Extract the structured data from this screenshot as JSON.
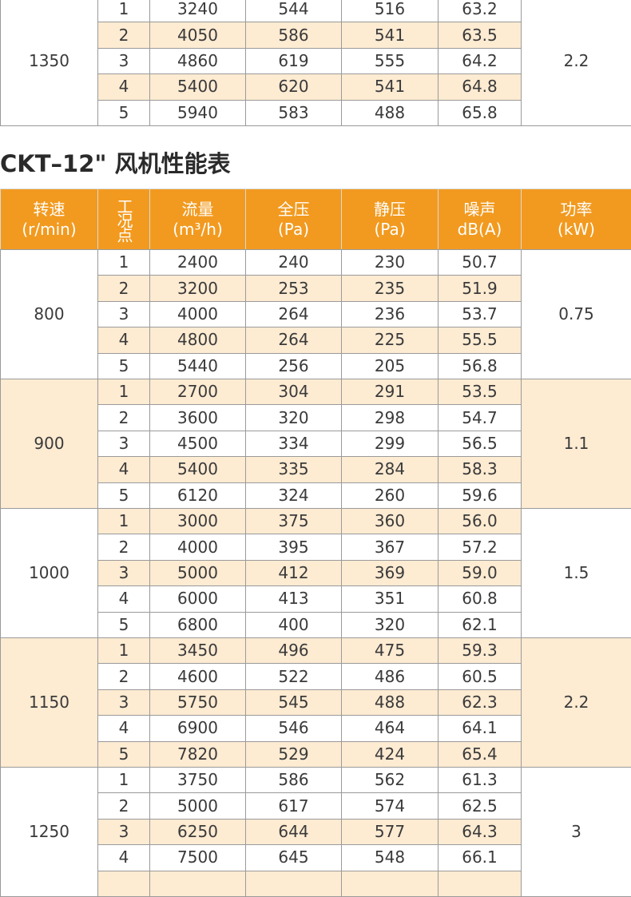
{
  "top_table": {
    "groups": [
      {
        "rpm": "1350",
        "power": "2.2",
        "rows": [
          [
            "1",
            "3240",
            "544",
            "516",
            "63.2"
          ],
          [
            "2",
            "4050",
            "586",
            "541",
            "63.5"
          ],
          [
            "3",
            "4860",
            "619",
            "555",
            "64.2"
          ],
          [
            "4",
            "5400",
            "620",
            "541",
            "64.8"
          ],
          [
            "5",
            "5940",
            "583",
            "488",
            "65.8"
          ]
        ]
      }
    ]
  },
  "title": "CKT–12\" 风机性能表",
  "table": {
    "header": [
      [
        "转速",
        "(r/min)"
      ],
      [
        "工况点"
      ],
      [
        "流量",
        "(m³/h)"
      ],
      [
        "全压",
        "(Pa)"
      ],
      [
        "静压",
        "(Pa)"
      ],
      [
        "噪声",
        "dB(A)"
      ],
      [
        "功率",
        "(kW)"
      ]
    ],
    "groups": [
      {
        "rpm": "800",
        "power": "0.75",
        "rows": [
          [
            "1",
            "2400",
            "240",
            "230",
            "50.7"
          ],
          [
            "2",
            "3200",
            "253",
            "235",
            "51.9"
          ],
          [
            "3",
            "4000",
            "264",
            "236",
            "53.7"
          ],
          [
            "4",
            "4800",
            "264",
            "225",
            "55.5"
          ],
          [
            "5",
            "5440",
            "256",
            "205",
            "56.8"
          ]
        ]
      },
      {
        "rpm": "900",
        "power": "1.1",
        "rows": [
          [
            "1",
            "2700",
            "304",
            "291",
            "53.5"
          ],
          [
            "2",
            "3600",
            "320",
            "298",
            "54.7"
          ],
          [
            "3",
            "4500",
            "334",
            "299",
            "56.5"
          ],
          [
            "4",
            "5400",
            "335",
            "284",
            "58.3"
          ],
          [
            "5",
            "6120",
            "324",
            "260",
            "59.6"
          ]
        ]
      },
      {
        "rpm": "1000",
        "power": "1.5",
        "rows": [
          [
            "1",
            "3000",
            "375",
            "360",
            "56.0"
          ],
          [
            "2",
            "4000",
            "395",
            "367",
            "57.2"
          ],
          [
            "3",
            "5000",
            "412",
            "369",
            "59.0"
          ],
          [
            "4",
            "6000",
            "413",
            "351",
            "60.8"
          ],
          [
            "5",
            "6800",
            "400",
            "320",
            "62.1"
          ]
        ]
      },
      {
        "rpm": "1150",
        "power": "2.2",
        "rows": [
          [
            "1",
            "3450",
            "496",
            "475",
            "59.3"
          ],
          [
            "2",
            "4600",
            "522",
            "486",
            "60.5"
          ],
          [
            "3",
            "5750",
            "545",
            "488",
            "62.3"
          ],
          [
            "4",
            "6900",
            "546",
            "464",
            "64.1"
          ],
          [
            "5",
            "7820",
            "529",
            "424",
            "65.4"
          ]
        ]
      },
      {
        "rpm": "1250",
        "power": "3",
        "rows": [
          [
            "1",
            "3750",
            "586",
            "562",
            "61.3"
          ],
          [
            "2",
            "5000",
            "617",
            "574",
            "62.5"
          ],
          [
            "3",
            "6250",
            "644",
            "577",
            "64.3"
          ],
          [
            "4",
            "7500",
            "645",
            "548",
            "66.1"
          ]
        ]
      }
    ]
  }
}
